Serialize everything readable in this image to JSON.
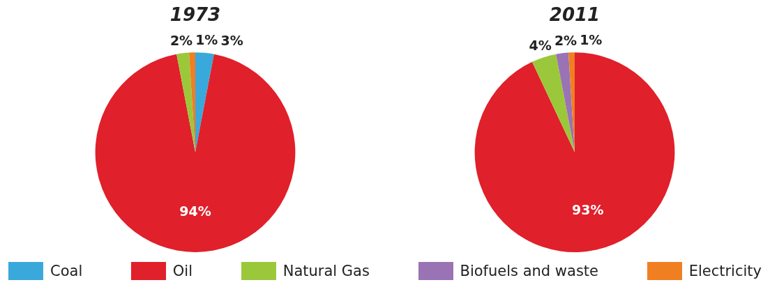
{
  "chart_data": [
    {
      "type": "pie",
      "title": "1973",
      "categories": [
        "Coal",
        "Oil",
        "Natural Gas",
        "Biofuels and waste",
        "Electricity"
      ],
      "values": [
        3,
        94,
        2,
        0,
        1
      ],
      "colors": [
        "#39a9dc",
        "#e0202a",
        "#9bc83a",
        "#9a73b5",
        "#f07f22"
      ],
      "value_labels": [
        "3%",
        "94%",
        "2%",
        null,
        "1%"
      ],
      "legend": "bottom"
    },
    {
      "type": "pie",
      "title": "2011",
      "categories": [
        null,
        null,
        null,
        null,
        null
      ],
      "values": [
        0,
        93,
        4,
        2,
        1
      ],
      "colors": [
        "#39a9dc",
        "#e0202a",
        "#9bc83a",
        "#9a73b5",
        "#f07f22"
      ],
      "value_labels": [
        null,
        "93%",
        "4%",
        "2%",
        "1%"
      ]
    }
  ]
}
